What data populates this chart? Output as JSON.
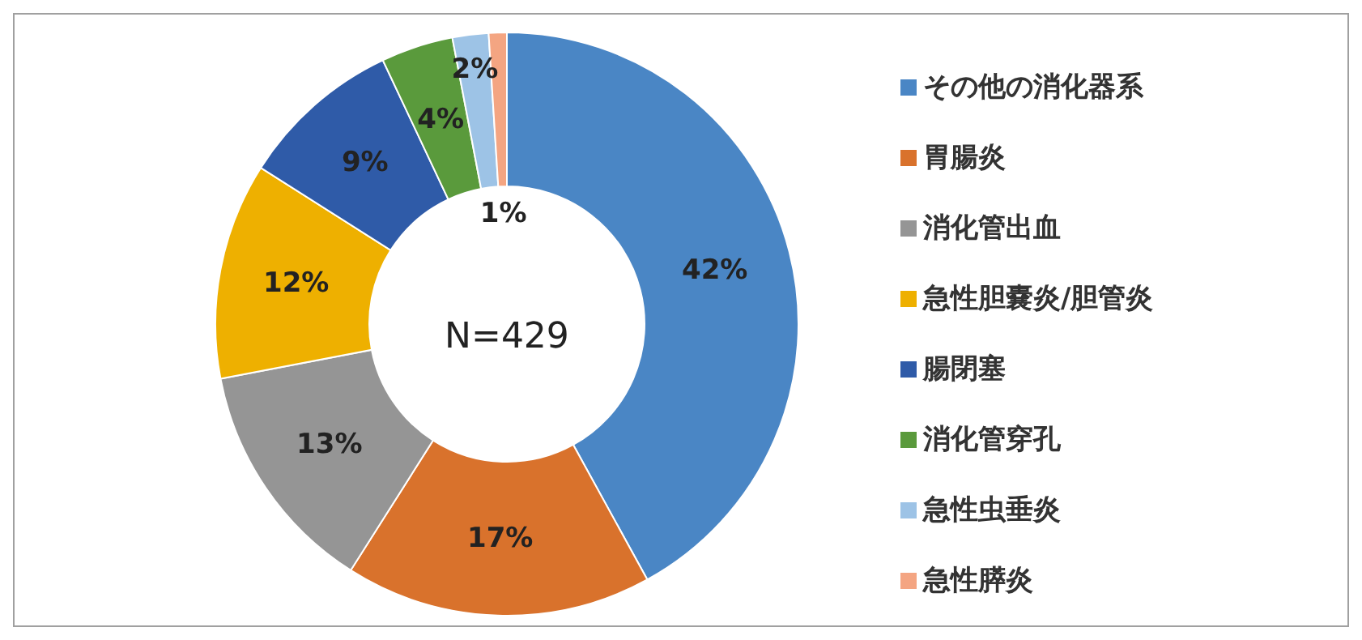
{
  "chart_data": {
    "type": "donut",
    "categories": [
      "その他の消化器系",
      "胃腸炎",
      "消化管出血",
      "急性胆嚢炎/胆管炎",
      "腸閉塞",
      "消化管穿孔",
      "急性虫垂炎",
      "急性膵炎"
    ],
    "values": [
      42,
      17,
      13,
      12,
      9,
      4,
      2,
      1
    ],
    "colors": [
      "#4a86c5",
      "#d9722c",
      "#959595",
      "#eeb000",
      "#2f5ba8",
      "#5a9a3c",
      "#9dc3e6",
      "#f4a582"
    ],
    "value_labels": [
      "42%",
      "17%",
      "13%",
      "12%",
      "9%",
      "4%",
      "2%",
      "1%"
    ],
    "legend": "right",
    "annotations": [
      "N=429"
    ]
  }
}
